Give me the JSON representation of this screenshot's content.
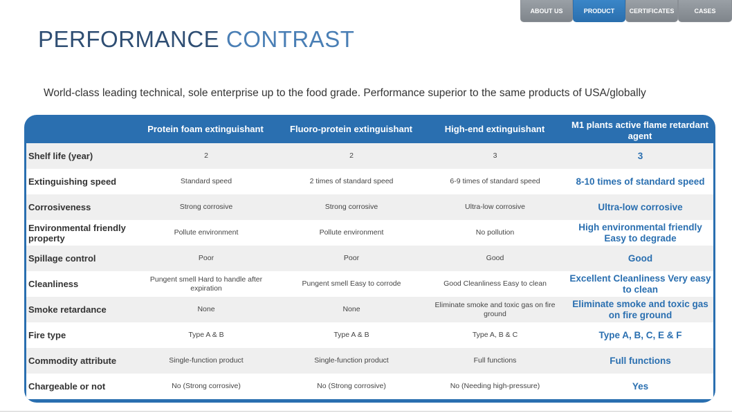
{
  "nav": {
    "tabs": [
      {
        "label": "ABOUT US",
        "active": false
      },
      {
        "label": "PRODUCT",
        "active": true
      },
      {
        "label": "CERTIFICATES",
        "active": false
      },
      {
        "label": "CASES",
        "active": false
      }
    ]
  },
  "title": {
    "part1": "PERFORMANCE ",
    "part2": "CONTRAST"
  },
  "subtitle": "World-class leading technical, sole enterprise up to the food grade. Performance superior to the same products of USA/globally",
  "table": {
    "headers": [
      "",
      "Protein foam extinguishant",
      "Fluoro-protein extinguishant",
      "High-end extinguishant",
      "M1 plants active flame retardant agent"
    ],
    "rows": [
      {
        "label": "Shelf life (year)",
        "c1": "2",
        "c2": "2",
        "c3": "3",
        "c4": "3"
      },
      {
        "label": "Extinguishing speed",
        "c1": "Standard speed",
        "c2": "2 times of standard speed",
        "c3": "6-9 times of standard speed",
        "c4": "8-10 times of standard speed"
      },
      {
        "label": "Corrosiveness",
        "c1": "Strong corrosive",
        "c2": "Strong corrosive",
        "c3": "Ultra-low corrosive",
        "c4": "Ultra-low corrosive"
      },
      {
        "label": "Environmental friendly property",
        "c1": "Pollute environment",
        "c2": "Pollute environment",
        "c3": "No pollution",
        "c4": "High environmental friendly Easy to degrade"
      },
      {
        "label": "Spillage control",
        "c1": "Poor",
        "c2": "Poor",
        "c3": "Good",
        "c4": "Good"
      },
      {
        "label": "Cleanliness",
        "c1": "Pungent smell Hard to handle after expiration",
        "c2": "Pungent smell Easy to corrode",
        "c3": "Good Cleanliness Easy to clean",
        "c4": "Excellent Cleanliness Very easy to clean"
      },
      {
        "label": "Smoke retardance",
        "c1": "None",
        "c2": "None",
        "c3": "Eliminate smoke and toxic gas on fire ground",
        "c4": "Eliminate smoke and toxic gas on fire ground"
      },
      {
        "label": "Fire type",
        "c1": "Type A & B",
        "c2": "Type A & B",
        "c3": "Type A, B & C",
        "c4": "Type A, B, C, E & F"
      },
      {
        "label": "Commodity attribute",
        "c1": "Single-function product",
        "c2": "Single-function product",
        "c3": "Full functions",
        "c4": "Full functions"
      },
      {
        "label": "Chargeable or not",
        "c1": "No (Strong corrosive)",
        "c2": "No (Strong corrosive)",
        "c3": "No (Needing high-pressure)",
        "c4": "Yes"
      }
    ]
  },
  "colors": {
    "accent": "#2a6fb0",
    "title": "#2f4e73",
    "row_alt": "#efefef"
  }
}
